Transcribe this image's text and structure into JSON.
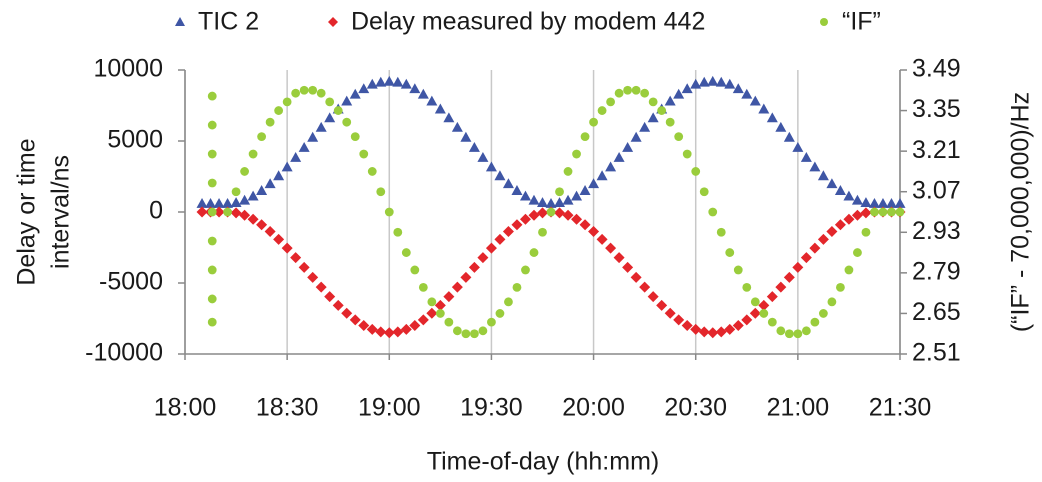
{
  "chart_data": {
    "type": "scatter",
    "xlabel": "Time-of-day (hh:mm)",
    "ylabel": [
      "Delay or time",
      "interval/ns"
    ],
    "y2label": "(“IF” - 70,000,000)/Hz",
    "xlim": [
      1080,
      1290
    ],
    "xticks": [
      {
        "value": 1080,
        "label": "18:00"
      },
      {
        "value": 1110,
        "label": "18:30"
      },
      {
        "value": 1140,
        "label": "19:00"
      },
      {
        "value": 1170,
        "label": "19:30"
      },
      {
        "value": 1200,
        "label": "20:00"
      },
      {
        "value": 1230,
        "label": "20:30"
      },
      {
        "value": 1260,
        "label": "21:00"
      },
      {
        "value": 1290,
        "label": "21:30"
      }
    ],
    "ylim": [
      -10000,
      10000
    ],
    "yticks": [
      -10000,
      -5000,
      0,
      5000,
      10000
    ],
    "y2lim": [
      2.51,
      3.49
    ],
    "y2ticks": [
      2.51,
      2.65,
      2.79,
      2.93,
      3.07,
      3.21,
      3.35,
      3.49
    ],
    "grid": "x",
    "legend": "top",
    "x": [
      1085,
      1087.5,
      1090,
      1092.5,
      1095,
      1097.5,
      1100,
      1102.5,
      1105,
      1107.5,
      1110,
      1112.5,
      1115,
      1117.5,
      1120,
      1122.5,
      1125,
      1127.5,
      1130,
      1132.5,
      1135,
      1137.5,
      1140,
      1142.5,
      1145,
      1147.5,
      1150,
      1152.5,
      1155,
      1157.5,
      1160,
      1162.5,
      1165,
      1167.5,
      1170,
      1172.5,
      1175,
      1177.5,
      1180,
      1182.5,
      1185,
      1187.5,
      1190,
      1192.5,
      1195,
      1197.5,
      1200,
      1202.5,
      1205,
      1207.5,
      1210,
      1212.5,
      1215,
      1217.5,
      1220,
      1222.5,
      1225,
      1227.5,
      1230,
      1232.5,
      1235,
      1237.5,
      1240,
      1242.5,
      1245,
      1247.5,
      1250,
      1252.5,
      1255,
      1257.5,
      1260,
      1262.5,
      1265,
      1267.5,
      1270,
      1272.5,
      1275,
      1277.5,
      1280,
      1282.5,
      1285,
      1287.5,
      1290
    ],
    "series": [
      {
        "name": "TIC 2",
        "color": "#3f56a5",
        "marker": "triangle",
        "axis": "y",
        "values": [
          600,
          600,
          600,
          600,
          660,
          830,
          1120,
          1510,
          1990,
          2550,
          3170,
          3840,
          4540,
          5260,
          5960,
          6630,
          7250,
          7810,
          8290,
          8680,
          9000,
          9140,
          9200,
          9140,
          9000,
          8680,
          8290,
          7810,
          7250,
          6630,
          5960,
          5260,
          4540,
          3840,
          3170,
          2550,
          1990,
          1510,
          1120,
          830,
          660,
          600,
          660,
          830,
          1120,
          1510,
          1990,
          2550,
          3170,
          3840,
          4540,
          5260,
          5960,
          6630,
          7250,
          7810,
          8290,
          8680,
          9000,
          9140,
          9200,
          9140,
          9000,
          8680,
          8290,
          7810,
          7250,
          6630,
          5960,
          5260,
          4540,
          3840,
          3170,
          2550,
          1990,
          1510,
          1120,
          830,
          660,
          600,
          600,
          600,
          600
        ]
      },
      {
        "name": "Delay measured by modem 442",
        "color": "#e3262b",
        "marker": "diamond",
        "axis": "y",
        "values": [
          0,
          0,
          0,
          0,
          -60,
          -230,
          -510,
          -900,
          -1370,
          -1930,
          -2540,
          -3210,
          -3900,
          -4600,
          -5290,
          -5960,
          -6580,
          -7130,
          -7600,
          -7990,
          -8270,
          -8440,
          -8500,
          -8440,
          -8270,
          -7990,
          -7600,
          -7130,
          -6580,
          -5960,
          -5290,
          -4600,
          -3900,
          -3210,
          -2540,
          -1930,
          -1370,
          -900,
          -510,
          -230,
          -60,
          0,
          -60,
          -230,
          -510,
          -900,
          -1370,
          -1930,
          -2540,
          -3210,
          -3900,
          -4600,
          -5290,
          -5960,
          -6580,
          -7130,
          -7600,
          -7990,
          -8270,
          -8440,
          -8500,
          -8440,
          -8270,
          -7990,
          -7600,
          -7130,
          -6580,
          -5960,
          -5290,
          -4600,
          -3900,
          -3210,
          -2540,
          -1930,
          -1370,
          -900,
          -510,
          -230,
          -60,
          0,
          0,
          0,
          0
        ]
      },
      {
        "name": "“IF”",
        "color": "#9acd3c",
        "marker": "circle",
        "axis": "y2",
        "x": [
          1088,
          1088,
          1088,
          1088,
          1088,
          1088,
          1088,
          1088,
          1088,
          1092.5,
          1095,
          1097.5,
          1100,
          1102.5,
          1105,
          1107.5,
          1110,
          1112.5,
          1115,
          1117.5,
          1120,
          1122.5,
          1125,
          1127.5,
          1130,
          1132.5,
          1135,
          1137.5,
          1140,
          1142.5,
          1145,
          1147.5,
          1150,
          1152.5,
          1155,
          1157.5,
          1160,
          1162.5,
          1165,
          1167.5,
          1170,
          1172.5,
          1175,
          1177.5,
          1180,
          1182.5,
          1185,
          1187.5,
          1190,
          1192.5,
          1195,
          1197.5,
          1200,
          1202.5,
          1205,
          1207.5,
          1210,
          1212.5,
          1215,
          1217.5,
          1220,
          1222.5,
          1225,
          1227.5,
          1230,
          1232.5,
          1235,
          1237.5,
          1240,
          1242.5,
          1245,
          1247.5,
          1250,
          1252.5,
          1255,
          1257.5,
          1260,
          1262.5,
          1265,
          1267.5,
          1270,
          1272.5,
          1275,
          1277.5,
          1280,
          1282.5,
          1285,
          1287.5,
          1290
        ],
        "values": [
          2.62,
          2.7,
          2.8,
          2.9,
          3.0,
          3.1,
          3.2,
          3.3,
          3.4,
          3.0,
          3.07,
          3.14,
          3.2,
          3.26,
          3.31,
          3.35,
          3.38,
          3.41,
          3.42,
          3.42,
          3.41,
          3.38,
          3.35,
          3.31,
          3.26,
          3.2,
          3.14,
          3.07,
          3.0,
          2.93,
          2.86,
          2.8,
          2.74,
          2.69,
          2.65,
          2.62,
          2.59,
          2.58,
          2.58,
          2.59,
          2.62,
          2.65,
          2.69,
          2.74,
          2.8,
          2.86,
          2.93,
          3.0,
          3.07,
          3.14,
          3.2,
          3.26,
          3.31,
          3.35,
          3.38,
          3.41,
          3.42,
          3.42,
          3.41,
          3.38,
          3.35,
          3.31,
          3.26,
          3.2,
          3.14,
          3.07,
          3.0,
          2.93,
          2.86,
          2.8,
          2.74,
          2.69,
          2.65,
          2.62,
          2.59,
          2.58,
          2.58,
          2.59,
          2.62,
          2.65,
          2.69,
          2.74,
          2.8,
          2.86,
          2.93,
          3.0,
          3.0,
          3.0,
          3.0
        ]
      }
    ]
  }
}
